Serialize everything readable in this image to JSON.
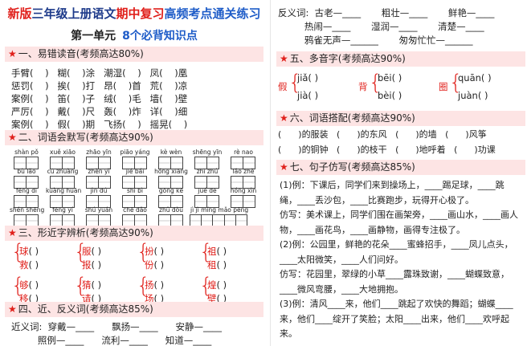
{
  "header": {
    "title": [
      {
        "text": "新版",
        "color": "red"
      },
      {
        "text": "三年级上册语文",
        "color": "navy"
      },
      {
        "text": "期中复习",
        "color": "red"
      },
      {
        "text": "高频考点通关练习",
        "color": "blue"
      }
    ],
    "subtitle": [
      {
        "text": "第一单元",
        "color": "black"
      },
      {
        "text": "8个必背知识点",
        "color": "blue"
      }
    ]
  },
  "sections": [
    {
      "heading": "一、易错读音(考频高达80%)",
      "rows": [
        "手臂(    )   糊(    )涂   潮湿(    )   凤(    )凰",
        "惩罚(    )   挨(    )打   昂(    )首   荒(    )凉",
        "案例(    )   笛(    )子   绒(    )毛   墙(    )壁",
        "严厉(    )   戴(    )尺   轰(    )炸   详(    )细",
        "案例(    )   假(    )期   飞扬(    )   摇晃(    )"
      ]
    },
    {
      "heading": "二、词语会默写(考频高达90%)",
      "grid": [
        [
          "shàn pǒ",
          "xuě xiāo",
          "zhāo yīn",
          "piāo yáng",
          "kè wèn",
          "shēng yīn",
          "rè nao"
        ],
        [
          "bù lǎo",
          "cū zhuàng",
          "zhèn yǐ",
          "jié bái",
          "hóng xiāng",
          "zhī zhú",
          "lǎo zhě"
        ],
        [
          "fēng dī",
          "kuàng huān",
          "jìn dú",
          "shī bì",
          "gōng kē",
          "jué de",
          "hóng xìn"
        ],
        [
          "shén shēng",
          "fēng yí",
          "shú yuán",
          "chē dǎo",
          "zhǔ dòu",
          "jì jì míng mǎo pēng"
        ]
      ]
    },
    {
      "heading": "三、形近字辨析(考频高达90%)",
      "groups": [
        [
          "球",
          "救"
        ],
        [
          "服",
          "报"
        ],
        [
          "扮",
          "份"
        ],
        [
          "祖",
          "租"
        ],
        [
          "够",
          "移"
        ],
        [
          "猜",
          "请"
        ],
        [
          "扬",
          "场"
        ],
        [
          "煌",
          "壁"
        ]
      ]
    },
    {
      "heading": "四、近、反义词(考频高达85%)",
      "rows": [
        "近义词:  穿戴—____      飘扬—____      安静—____",
        "         照例—____      流利—____      知道—____"
      ]
    },
    {
      "lead_rows": [
        "反义词:  古老—____       粗壮—____       鲜艳—____",
        "         热闹—____       湿润—____       清楚—____",
        "         鸦雀无声—______       匆匆忙忙—______"
      ]
    },
    {
      "heading": "五、多音字(考频高达90%)",
      "poly": [
        {
          "char": "假",
          "readings": [
            "jiǎ(      )",
            "jià(      )"
          ]
        },
        {
          "char": "背",
          "readings": [
            "bēi(      )",
            "bèi(      )"
          ]
        },
        {
          "char": "圈",
          "readings": [
            "quān(      )",
            "juàn(      )"
          ]
        }
      ]
    },
    {
      "heading": "六、词语搭配(考频高达90%)",
      "rows": [
        "(      )的服装   (      )的东风   (      )的墙   (      )风筝",
        "(      )的铜钟   (      )的枝干   (      )地呼着   (      )功课"
      ]
    },
    {
      "heading": "七、句子仿写(考频高达85%)",
      "paras": [
        "(1)例：下课后，同学们来到操场上，____踢足球，____跳绳，____丢沙包，____比赛跑步，玩得开心极了。",
        "仿写：美术课上，同学们围在画架旁，____画山水，____画人物，____画花鸟，____画静物，画得专注极了。",
        "(2)例：公园里，鲜艳的花朵____蜜蜂招手，____凤儿点头，____太阳微笑，____人们问好。",
        "仿写：花园里，翠绿的小草____露珠致谢，____蝴蝶致意，____微风弯腰，____大地拥抱。",
        "(3)例：清风____来，他们____跳起了欢快的舞蹈；蝴蝶____来，他们____绽开了笑脸；太阳____出来，他们____欢呼起来。"
      ]
    }
  ]
}
